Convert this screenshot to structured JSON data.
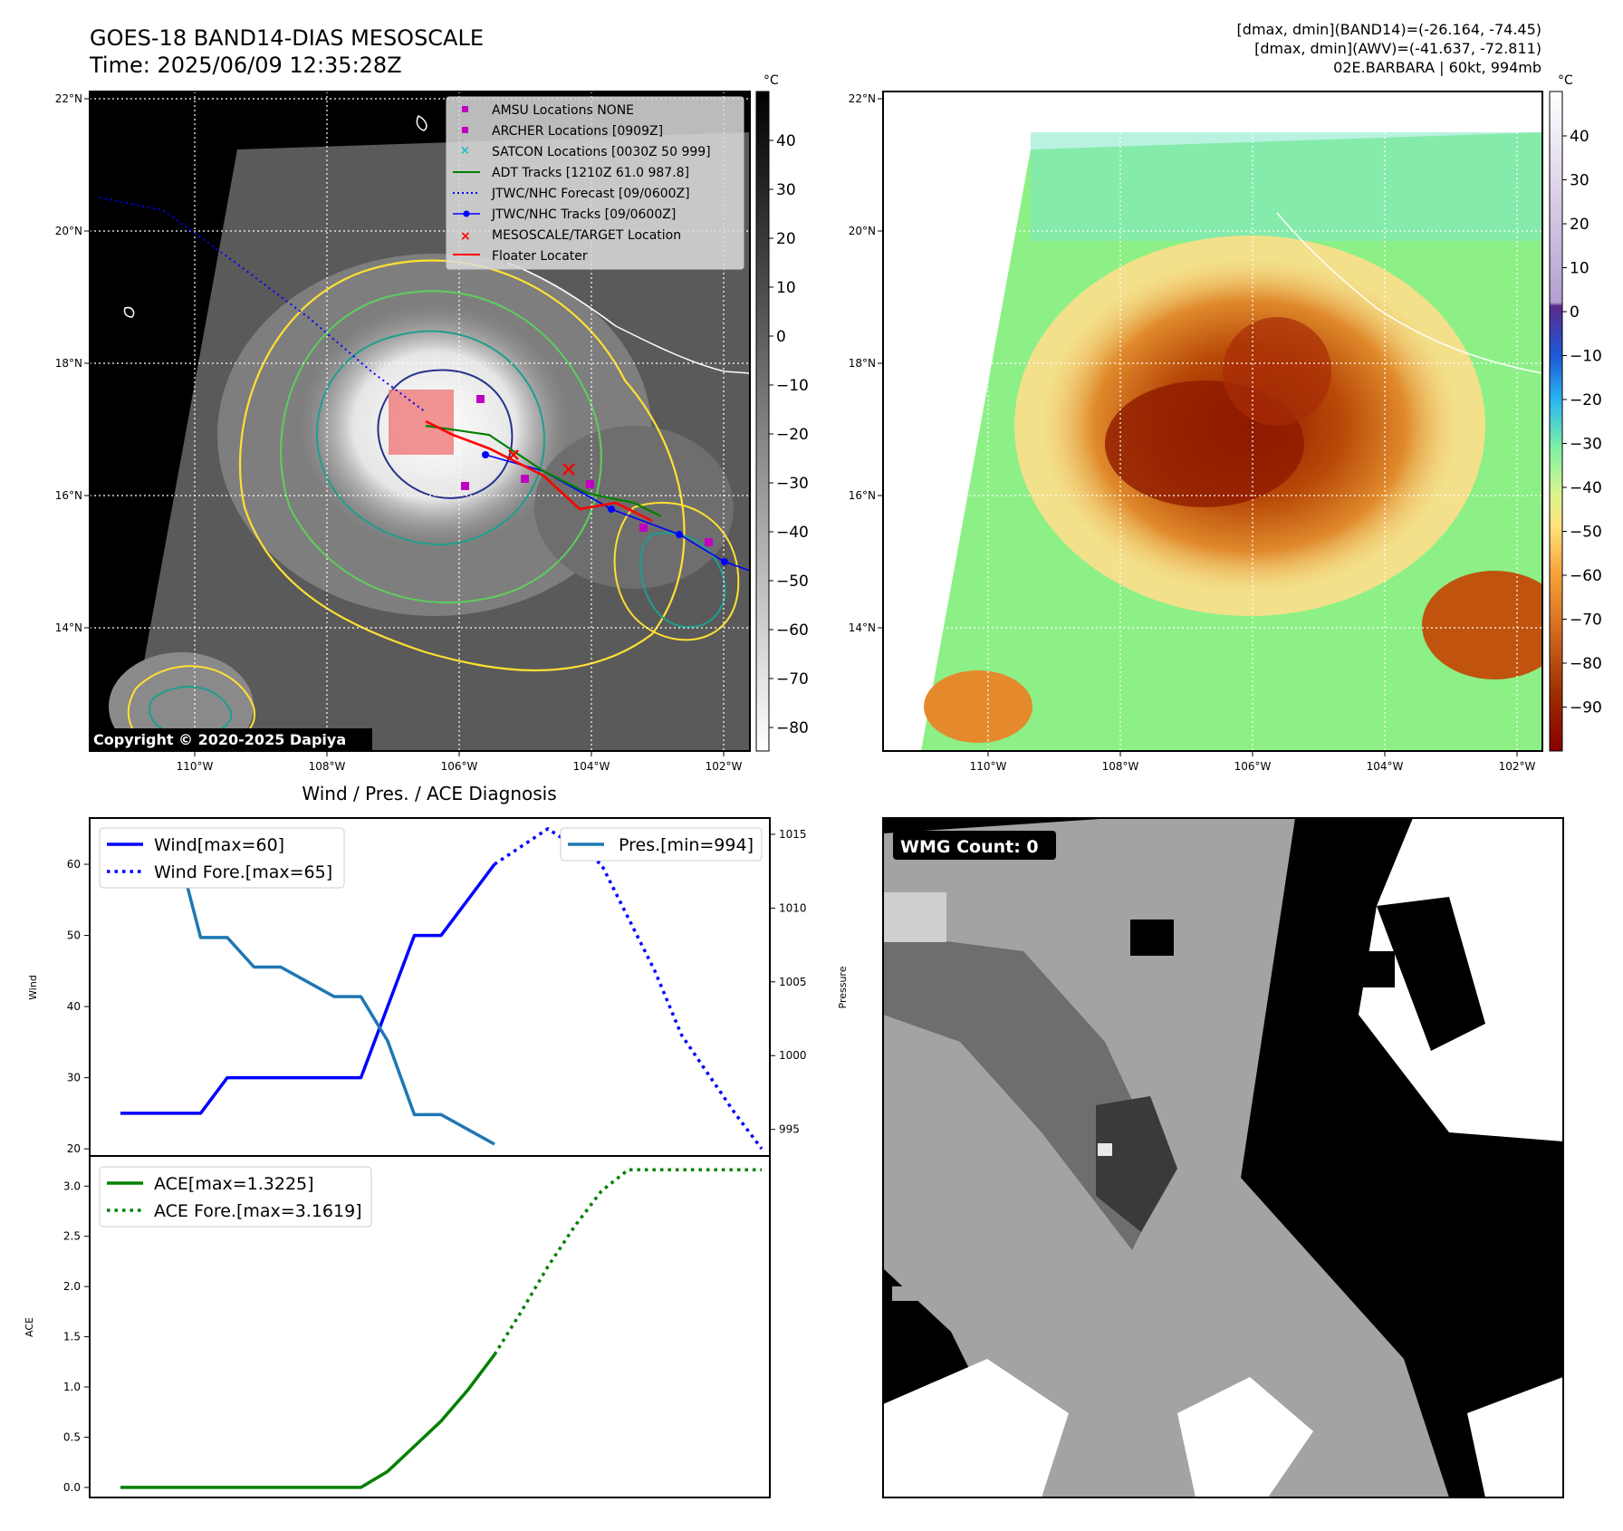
{
  "header": {
    "title_line1": "GOES-18 BAND14-DIAS MESOSCALE",
    "title_line2": "Time: 2025/06/09 12:35:28Z",
    "info_line1": "[dmax, dmin](BAND14)=(-26.164, -74.45)",
    "info_line2": "[dmax, dmin](AWV)=(-41.637, -72.811)",
    "info_line3": "02E.BARBARA | 60kt, 994mb"
  },
  "map_axes": {
    "lat_ticks": [
      "22°N",
      "20°N",
      "18°N",
      "16°N",
      "14°N"
    ],
    "lon_ticks": [
      "110°W",
      "108°W",
      "106°W",
      "104°W",
      "102°W"
    ]
  },
  "colorbar_left": {
    "unit": "°C",
    "ticks": [
      "40",
      "30",
      "20",
      "10",
      "0",
      "−10",
      "−20",
      "−30",
      "−40",
      "−50",
      "−60",
      "−70",
      "−80"
    ]
  },
  "colorbar_right": {
    "unit": "°C",
    "ticks": [
      "40",
      "30",
      "20",
      "10",
      "0",
      "−10",
      "−20",
      "−30",
      "−40",
      "−50",
      "−60",
      "−70",
      "−80",
      "−90"
    ]
  },
  "legend_map": {
    "items": [
      "AMSU Locations NONE",
      "ARCHER Locations [0909Z]",
      "SATCON Locations [0030Z 50 999]",
      "ADT Tracks [1210Z 61.0 987.8]",
      "JTWC/NHC Forecast [09/0600Z]",
      "JTWC/NHC Tracks [09/0600Z]",
      "MESOSCALE/TARGET Location",
      "Floater Locater"
    ]
  },
  "copyright": "Copyright © 2020-2025 Dapiya",
  "wmg_label": "WMG Count: 0",
  "colors": {
    "wind": "#0000ff",
    "pressure": "#1f77b4",
    "ace": "#008000",
    "contour_yellow": "#ffe033",
    "contour_green": "#5ccf5c",
    "contour_teal": "#1e9e8e",
    "contour_navy": "#26338a"
  },
  "chart_data": [
    {
      "type": "line",
      "title": "Wind / Pres. / ACE Diagnosis",
      "ylabel": "Wind",
      "y2label": "Pressure",
      "ylim": [
        19,
        66.5
      ],
      "y2lim": [
        993.2,
        1016.1
      ],
      "yticks": [
        "60",
        "50",
        "40",
        "30",
        "20"
      ],
      "y2ticks": [
        "1015",
        "1010",
        "1005",
        "1000",
        "995"
      ],
      "x": [
        0,
        1,
        2,
        3,
        4,
        5,
        6,
        7,
        8,
        9,
        10,
        11,
        12,
        13,
        14,
        15,
        16,
        17,
        18,
        19
      ],
      "series": [
        {
          "name": "Wind[max=60]",
          "axis": "left",
          "style": "solid",
          "x": [
            0,
            1,
            2,
            3,
            4,
            5,
            6,
            7,
            8,
            9,
            10,
            11,
            12,
            13,
            14
          ],
          "values": [
            25,
            25,
            25,
            25,
            30,
            30,
            30,
            30,
            30,
            30,
            40,
            50,
            50,
            55,
            60
          ]
        },
        {
          "name": "Wind Fore.[max=65]",
          "axis": "left",
          "style": "dotted",
          "x": [
            14,
            16,
            18,
            20,
            21,
            23,
            24
          ],
          "values": [
            60,
            65,
            60,
            45,
            36,
            25,
            20
          ]
        },
        {
          "name": "Pres.[min=994]",
          "axis": "right",
          "style": "solid",
          "x": [
            0,
            1,
            2,
            3,
            4,
            5,
            6,
            7,
            8,
            9,
            10,
            11,
            12,
            13,
            14
          ],
          "values": [
            1015,
            1015,
            1015,
            1008,
            1008,
            1006,
            1006,
            1005,
            1004,
            1004,
            1001,
            996,
            996,
            995,
            994
          ]
        }
      ]
    },
    {
      "type": "line",
      "ylabel": "ACE",
      "ylim": [
        -0.1,
        3.3
      ],
      "yticks": [
        "3.0",
        "2.5",
        "2.0",
        "1.5",
        "1.0",
        "0.5",
        "0.0"
      ],
      "series": [
        {
          "name": "ACE[max=1.3225]",
          "style": "solid",
          "x": [
            0,
            4,
            9,
            10,
            11,
            12,
            13,
            14
          ],
          "values": [
            0,
            0,
            0,
            0.16,
            0.41,
            0.66,
            0.97,
            1.3225
          ]
        },
        {
          "name": "ACE Fore.[max=3.1619]",
          "style": "dotted",
          "x": [
            14,
            15,
            16,
            17,
            18,
            19,
            20,
            24
          ],
          "values": [
            1.3225,
            1.75,
            2.2,
            2.6,
            2.95,
            3.1619,
            3.1619,
            3.1619
          ]
        }
      ]
    }
  ]
}
